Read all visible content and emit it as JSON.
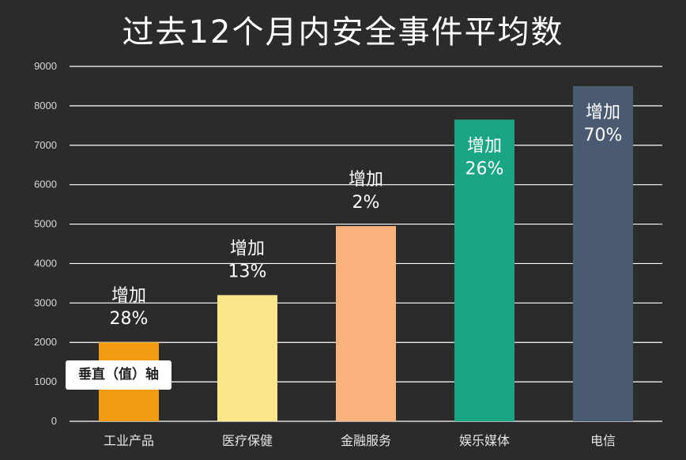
{
  "title": "过去12个月内安全事件平均数",
  "axis_tag": "垂直（值）轴",
  "colors": {
    "background": "#2b2b2b",
    "grid": "#ffffff",
    "bars": [
      "#f39c12",
      "#fde58a",
      "#fbb27c",
      "#1aa584",
      "#4a5a70"
    ],
    "annotation_text": [
      "#ffffff",
      "#ffffff",
      "#ffffff",
      "#ffffff",
      "#ffffff"
    ]
  },
  "chart_data": {
    "type": "bar",
    "title": "过去12个月内安全事件平均数",
    "xlabel": "",
    "ylabel": "",
    "ylim": [
      0,
      9000
    ],
    "yticks": [
      "0",
      "1000",
      "2000",
      "3000",
      "4000",
      "5000",
      "6000",
      "7000",
      "8000",
      "9000"
    ],
    "grid": true,
    "categories": [
      "工业产品",
      "医疗保健",
      "金融服务",
      "娱乐媒体",
      "电信"
    ],
    "values": [
      2000,
      3200,
      4950,
      7650,
      8500
    ],
    "annotations": [
      [
        "增加",
        "28%"
      ],
      [
        "增加",
        "13%"
      ],
      [
        "增加",
        "2%"
      ],
      [
        "增加",
        "26%"
      ],
      [
        "增加",
        "70%"
      ]
    ]
  }
}
